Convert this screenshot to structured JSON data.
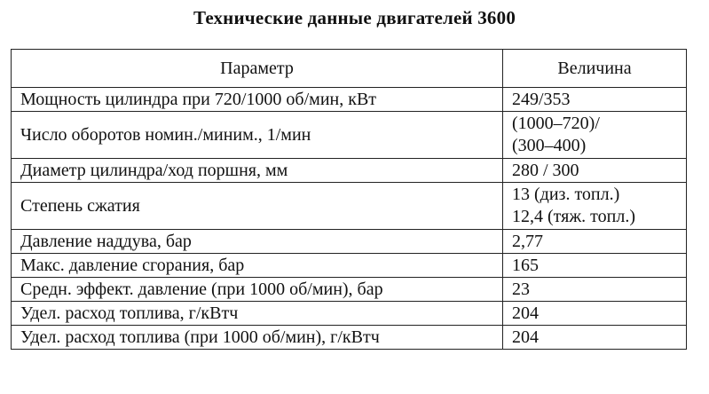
{
  "title": "Технические данные двигателей 3600",
  "table": {
    "headers": [
      "Параметр",
      "Величина"
    ],
    "rows": [
      {
        "param": "Мощность цилиндра при 720/1000 об/мин, кВт",
        "value": [
          "249/353"
        ]
      },
      {
        "param": "Число оборотов номин./миним., 1/мин",
        "value": [
          "(1000–720)/",
          "(300–400)"
        ]
      },
      {
        "param": "Диаметр цилиндра/ход поршня, мм",
        "value": [
          "280 / 300"
        ]
      },
      {
        "param": "Степень сжатия",
        "value": [
          "13 (диз. топл.)",
          "12,4 (тяж. топл.)"
        ]
      },
      {
        "param": "Давление наддува, бар",
        "value": [
          "2,77"
        ]
      },
      {
        "param": "Макс. давление сгорания, бар",
        "value": [
          "165"
        ]
      },
      {
        "param": "Средн. эффект. давление (при 1000 об/мин), бар",
        "value": [
          "23"
        ]
      },
      {
        "param": "Удел. расход топлива, г/кВтч",
        "value": [
          "204"
        ]
      },
      {
        "param": "Удел. расход топлива (при 1000 об/мин), г/кВтч",
        "value": [
          "204"
        ]
      }
    ]
  }
}
